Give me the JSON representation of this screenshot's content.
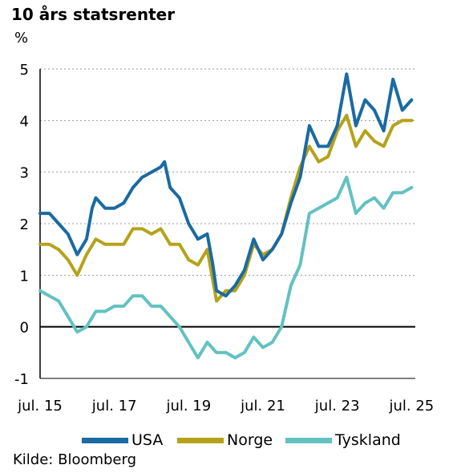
{
  "title": "10 års statsrenter",
  "unit": "%",
  "source": "Kilde: Bloomberg",
  "chart_data": {
    "type": "line",
    "title": "10 års statsrenter",
    "ylabel": "%",
    "xlabel": "",
    "ylim": [
      -1,
      5
    ],
    "yticks": [
      -1,
      0,
      1,
      2,
      3,
      4,
      5
    ],
    "xlim": [
      2015.5,
      2025.6
    ],
    "xticks": [
      {
        "x": 2015.5,
        "label": "jul. 15"
      },
      {
        "x": 2017.5,
        "label": "jul. 17"
      },
      {
        "x": 2019.5,
        "label": "jul. 19"
      },
      {
        "x": 2021.5,
        "label": "jul. 21"
      },
      {
        "x": 2023.5,
        "label": "jul. 23"
      },
      {
        "x": 2025.5,
        "label": "jul. 25"
      }
    ],
    "grid": "horizontal dashed",
    "legend": "bottom",
    "series": [
      {
        "name": "USA",
        "color": "#1a6aa3",
        "points": [
          [
            2015.5,
            2.2
          ],
          [
            2015.75,
            2.2
          ],
          [
            2016.0,
            2.0
          ],
          [
            2016.25,
            1.8
          ],
          [
            2016.5,
            1.4
          ],
          [
            2016.75,
            1.7
          ],
          [
            2016.9,
            2.3
          ],
          [
            2017.0,
            2.5
          ],
          [
            2017.25,
            2.3
          ],
          [
            2017.5,
            2.3
          ],
          [
            2017.75,
            2.4
          ],
          [
            2018.0,
            2.7
          ],
          [
            2018.25,
            2.9
          ],
          [
            2018.5,
            3.0
          ],
          [
            2018.75,
            3.1
          ],
          [
            2018.85,
            3.2
          ],
          [
            2019.0,
            2.7
          ],
          [
            2019.25,
            2.5
          ],
          [
            2019.5,
            2.0
          ],
          [
            2019.75,
            1.7
          ],
          [
            2020.0,
            1.8
          ],
          [
            2020.15,
            1.2
          ],
          [
            2020.25,
            0.7
          ],
          [
            2020.5,
            0.6
          ],
          [
            2020.75,
            0.8
          ],
          [
            2021.0,
            1.1
          ],
          [
            2021.25,
            1.7
          ],
          [
            2021.5,
            1.3
          ],
          [
            2021.75,
            1.5
          ],
          [
            2022.0,
            1.8
          ],
          [
            2022.25,
            2.4
          ],
          [
            2022.5,
            2.9
          ],
          [
            2022.75,
            3.9
          ],
          [
            2023.0,
            3.5
          ],
          [
            2023.25,
            3.5
          ],
          [
            2023.5,
            3.9
          ],
          [
            2023.75,
            4.9
          ],
          [
            2024.0,
            3.9
          ],
          [
            2024.25,
            4.4
          ],
          [
            2024.5,
            4.2
          ],
          [
            2024.75,
            3.8
          ],
          [
            2025.0,
            4.8
          ],
          [
            2025.25,
            4.2
          ],
          [
            2025.5,
            4.4
          ]
        ]
      },
      {
        "name": "Norge",
        "color": "#b5a21a",
        "points": [
          [
            2015.5,
            1.6
          ],
          [
            2015.75,
            1.6
          ],
          [
            2016.0,
            1.5
          ],
          [
            2016.25,
            1.3
          ],
          [
            2016.5,
            1.0
          ],
          [
            2016.75,
            1.4
          ],
          [
            2017.0,
            1.7
          ],
          [
            2017.25,
            1.6
          ],
          [
            2017.5,
            1.6
          ],
          [
            2017.75,
            1.6
          ],
          [
            2018.0,
            1.9
          ],
          [
            2018.25,
            1.9
          ],
          [
            2018.5,
            1.8
          ],
          [
            2018.75,
            1.9
          ],
          [
            2019.0,
            1.6
          ],
          [
            2019.25,
            1.6
          ],
          [
            2019.5,
            1.3
          ],
          [
            2019.75,
            1.2
          ],
          [
            2020.0,
            1.5
          ],
          [
            2020.25,
            0.5
          ],
          [
            2020.5,
            0.7
          ],
          [
            2020.75,
            0.7
          ],
          [
            2021.0,
            1.0
          ],
          [
            2021.25,
            1.6
          ],
          [
            2021.5,
            1.4
          ],
          [
            2021.75,
            1.5
          ],
          [
            2022.0,
            1.8
          ],
          [
            2022.25,
            2.5
          ],
          [
            2022.5,
            3.1
          ],
          [
            2022.75,
            3.5
          ],
          [
            2023.0,
            3.2
          ],
          [
            2023.25,
            3.3
          ],
          [
            2023.5,
            3.8
          ],
          [
            2023.75,
            4.1
          ],
          [
            2024.0,
            3.5
          ],
          [
            2024.25,
            3.8
          ],
          [
            2024.5,
            3.6
          ],
          [
            2024.75,
            3.5
          ],
          [
            2025.0,
            3.9
          ],
          [
            2025.25,
            4.0
          ],
          [
            2025.5,
            4.0
          ]
        ]
      },
      {
        "name": "Tyskland",
        "color": "#62c2c0",
        "points": [
          [
            2015.5,
            0.7
          ],
          [
            2015.75,
            0.6
          ],
          [
            2016.0,
            0.5
          ],
          [
            2016.25,
            0.2
          ],
          [
            2016.5,
            -0.1
          ],
          [
            2016.75,
            0.0
          ],
          [
            2017.0,
            0.3
          ],
          [
            2017.25,
            0.3
          ],
          [
            2017.5,
            0.4
          ],
          [
            2017.75,
            0.4
          ],
          [
            2018.0,
            0.6
          ],
          [
            2018.25,
            0.6
          ],
          [
            2018.5,
            0.4
          ],
          [
            2018.75,
            0.4
          ],
          [
            2019.0,
            0.2
          ],
          [
            2019.25,
            0.0
          ],
          [
            2019.5,
            -0.3
          ],
          [
            2019.75,
            -0.6
          ],
          [
            2020.0,
            -0.3
          ],
          [
            2020.25,
            -0.5
          ],
          [
            2020.5,
            -0.5
          ],
          [
            2020.75,
            -0.6
          ],
          [
            2021.0,
            -0.5
          ],
          [
            2021.25,
            -0.2
          ],
          [
            2021.5,
            -0.4
          ],
          [
            2021.75,
            -0.3
          ],
          [
            2022.0,
            0.0
          ],
          [
            2022.25,
            0.8
          ],
          [
            2022.5,
            1.2
          ],
          [
            2022.75,
            2.2
          ],
          [
            2023.0,
            2.3
          ],
          [
            2023.25,
            2.4
          ],
          [
            2023.5,
            2.5
          ],
          [
            2023.75,
            2.9
          ],
          [
            2024.0,
            2.2
          ],
          [
            2024.25,
            2.4
          ],
          [
            2024.5,
            2.5
          ],
          [
            2024.75,
            2.3
          ],
          [
            2025.0,
            2.6
          ],
          [
            2025.25,
            2.6
          ],
          [
            2025.5,
            2.7
          ]
        ]
      }
    ]
  }
}
